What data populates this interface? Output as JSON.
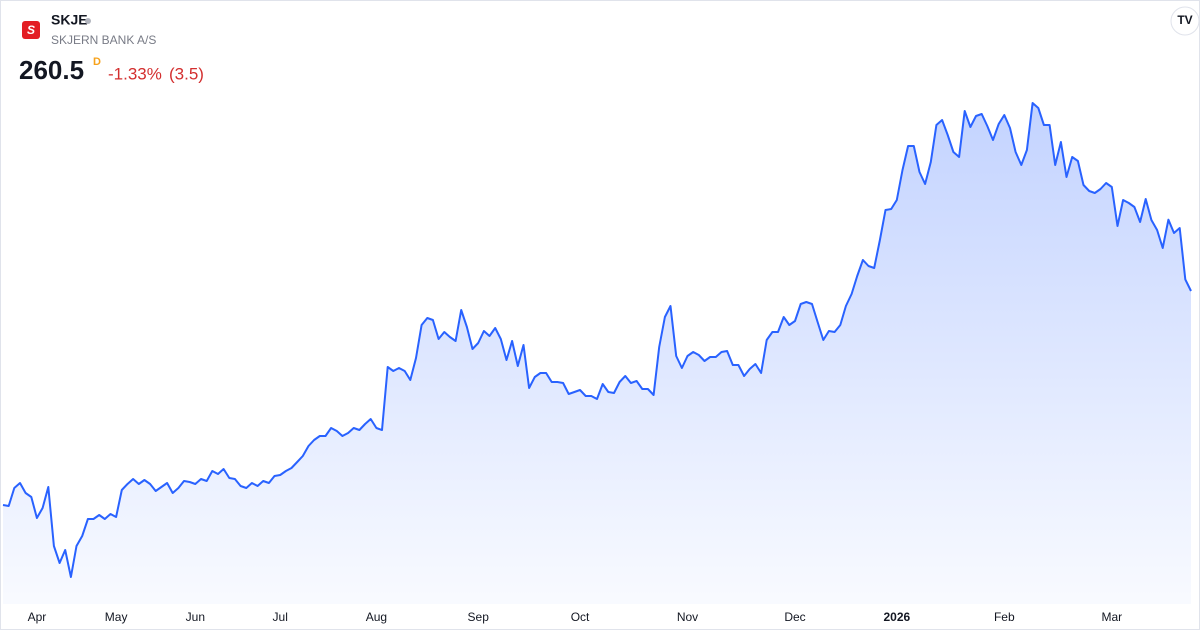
{
  "header": {
    "ticker": "SKJE",
    "name": "SKJERN BANK A/S",
    "price": "260.5",
    "interval": "D",
    "change_pct": "-1.33%",
    "change_abs": "(3.5)"
  },
  "chart_data": {
    "type": "area",
    "color": "#2962ff",
    "values": [
      196.3,
      196.0,
      201.4,
      202.9,
      199.9,
      198.7,
      192.4,
      195.4,
      201.7,
      184.0,
      178.9,
      182.8,
      174.7,
      184.0,
      187.0,
      192.1,
      192.1,
      193.3,
      192.1,
      193.6,
      192.7,
      200.8,
      202.6,
      204.1,
      202.6,
      203.8,
      202.6,
      200.5,
      201.7,
      202.9,
      199.9,
      201.4,
      203.5,
      203.2,
      202.6,
      204.1,
      203.5,
      206.5,
      205.6,
      207.1,
      204.4,
      204.1,
      202.0,
      201.4,
      202.9,
      202.0,
      203.5,
      202.9,
      205.0,
      205.3,
      206.5,
      207.4,
      209.2,
      211.0,
      214.0,
      215.8,
      217.0,
      217.0,
      219.4,
      218.5,
      217.0,
      217.9,
      219.4,
      218.8,
      220.6,
      222.1,
      219.4,
      218.8,
      237.7,
      236.5,
      237.4,
      236.5,
      233.8,
      240.4,
      250.3,
      252.4,
      251.8,
      246.1,
      248.2,
      246.7,
      245.5,
      254.8,
      249.7,
      243.1,
      244.9,
      248.5,
      247.0,
      249.4,
      246.1,
      239.8,
      245.5,
      238.0,
      244.3,
      231.4,
      234.7,
      235.9,
      235.9,
      233.2,
      233.2,
      232.9,
      229.6,
      230.2,
      230.8,
      229.0,
      229.0,
      228.1,
      232.6,
      230.2,
      229.9,
      233.2,
      235.0,
      232.9,
      233.5,
      231.1,
      231.1,
      229.3,
      243.7,
      252.7,
      256.0,
      241.0,
      237.4,
      241.0,
      242.2,
      241.3,
      239.5,
      240.7,
      240.7,
      242.2,
      242.5,
      238.3,
      238.3,
      235.0,
      237.1,
      238.6,
      235.9,
      245.8,
      248.2,
      248.2,
      252.7,
      250.3,
      251.5,
      256.6,
      257.2,
      256.6,
      251.2,
      245.8,
      248.5,
      248.2,
      250.3,
      256.0,
      259.6,
      265.0,
      269.8,
      268.0,
      267.4,
      275.8,
      284.8,
      285.1,
      287.8,
      296.8,
      304.0,
      304.0,
      296.2,
      292.6,
      299.2,
      310.3,
      311.8,
      307.3,
      302.2,
      300.7,
      314.5,
      309.7,
      313.0,
      313.6,
      310.0,
      305.8,
      310.6,
      313.3,
      309.4,
      302.2,
      298.3,
      302.8,
      316.9,
      315.4,
      310.3,
      310.3,
      298.3,
      305.2,
      294.7,
      300.7,
      299.5,
      292.3,
      290.5,
      289.9,
      291.1,
      292.9,
      291.7,
      280.0,
      287.8,
      286.9,
      285.7,
      281.2,
      288.1,
      281.8,
      278.8,
      273.4,
      281.9,
      277.9,
      279.4,
      264.0,
      260.5
    ],
    "ylim": [
      170,
      320
    ],
    "xlim": [
      0,
      210
    ],
    "xticks": [
      {
        "value": 6,
        "label": "Apr"
      },
      {
        "value": 20,
        "label": "May"
      },
      {
        "value": 34,
        "label": "Jun"
      },
      {
        "value": 49,
        "label": "Jul"
      },
      {
        "value": 66,
        "label": "Aug"
      },
      {
        "value": 84,
        "label": "Sep"
      },
      {
        "value": 102,
        "label": "Oct"
      },
      {
        "value": 121,
        "label": "Nov"
      },
      {
        "value": 140,
        "label": "Dec"
      },
      {
        "value": 158,
        "label": "2026"
      },
      {
        "value": 177,
        "label": "Feb"
      },
      {
        "value": 196,
        "label": "Mar"
      }
    ]
  }
}
